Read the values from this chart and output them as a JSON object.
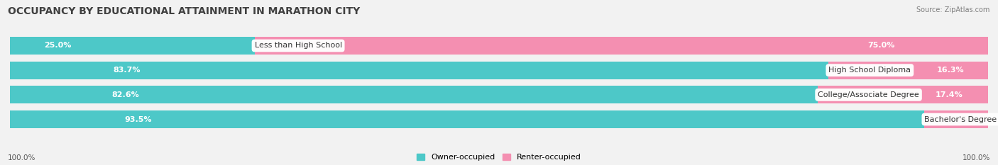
{
  "title": "OCCUPANCY BY EDUCATIONAL ATTAINMENT IN MARATHON CITY",
  "source": "Source: ZipAtlas.com",
  "categories": [
    "Less than High School",
    "High School Diploma",
    "College/Associate Degree",
    "Bachelor's Degree or higher"
  ],
  "owner_pct": [
    25.0,
    83.7,
    82.6,
    93.5
  ],
  "renter_pct": [
    75.0,
    16.3,
    17.4,
    6.5
  ],
  "owner_color": "#4DC8C8",
  "renter_color": "#F48FB1",
  "bg_color": "#F2F2F2",
  "row_bg_color": "#E4E4E4",
  "title_fontsize": 10,
  "source_fontsize": 7,
  "label_fontsize": 8,
  "pct_fontsize": 8,
  "bar_height": 0.72,
  "axis_label_left": "100.0%",
  "axis_label_right": "100.0%",
  "legend_label_owner": "Owner-occupied",
  "legend_label_renter": "Renter-occupied"
}
